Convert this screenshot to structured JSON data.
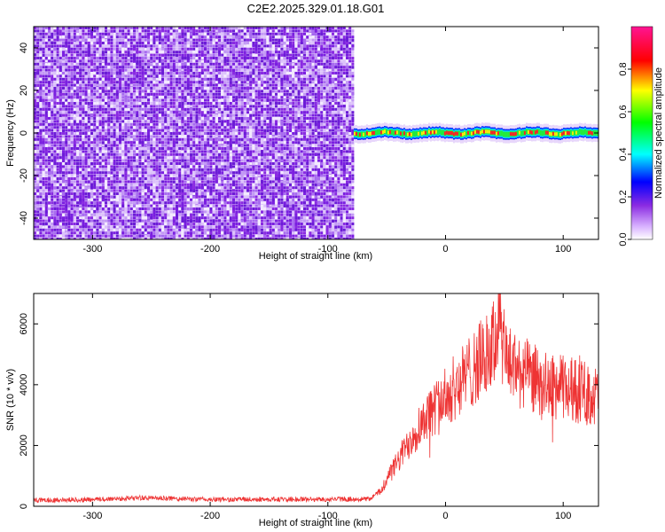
{
  "title": "C2E2.2025.329.01.18.G01",
  "colors": {
    "snr_line": "#ee3333",
    "spectrogram_low": "#8a2be2",
    "axis": "#000000"
  },
  "chart_data": [
    {
      "type": "heatmap",
      "xlabel": "Height of straight line (km)",
      "ylabel": "Frequency (Hz)",
      "xlim": [
        -350,
        130
      ],
      "ylim": [
        -50,
        50
      ],
      "xticks": [
        -300,
        -200,
        -100,
        0,
        100
      ],
      "yticks": [
        -40,
        -20,
        0,
        20,
        40
      ],
      "noise_region_x": [
        -350,
        -78
      ],
      "signal_band_frequency": 0,
      "colorbar": {
        "label": "Normalized spectral amplitude",
        "range": [
          0,
          1
        ],
        "ticks": [
          "0.0",
          "0.2",
          "0.4",
          "0.6",
          "0.8"
        ],
        "colormap": [
          "#ffffff",
          "#d9b3ff",
          "#8a2be2",
          "#0000ff",
          "#00ffff",
          "#00ff00",
          "#ffff00",
          "#ff0000",
          "#ff1493"
        ]
      }
    },
    {
      "type": "line",
      "xlabel": "Height of straight line (km)",
      "ylabel": "SNR (10 * v/v)",
      "xlim": [
        -350,
        130
      ],
      "ylim": [
        0,
        7000
      ],
      "xticks": [
        -300,
        -200,
        -100,
        0,
        100
      ],
      "yticks": [
        0,
        2000,
        4000,
        6000
      ],
      "series": [
        {
          "x": [
            -350,
            -300,
            -260,
            -200,
            -150,
            -100,
            -65,
            -55,
            -50,
            -40,
            -30,
            -20,
            -10,
            0,
            10,
            20,
            30,
            40,
            45,
            50,
            60,
            70,
            80,
            90,
            100,
            110,
            120,
            130
          ],
          "values": [
            200,
            220,
            280,
            220,
            230,
            230,
            240,
            500,
            900,
            1500,
            2200,
            2800,
            3200,
            3600,
            4000,
            4400,
            4800,
            5200,
            6000,
            5000,
            4500,
            4300,
            4100,
            3900,
            3900,
            3800,
            3700,
            3600
          ]
        }
      ]
    }
  ]
}
